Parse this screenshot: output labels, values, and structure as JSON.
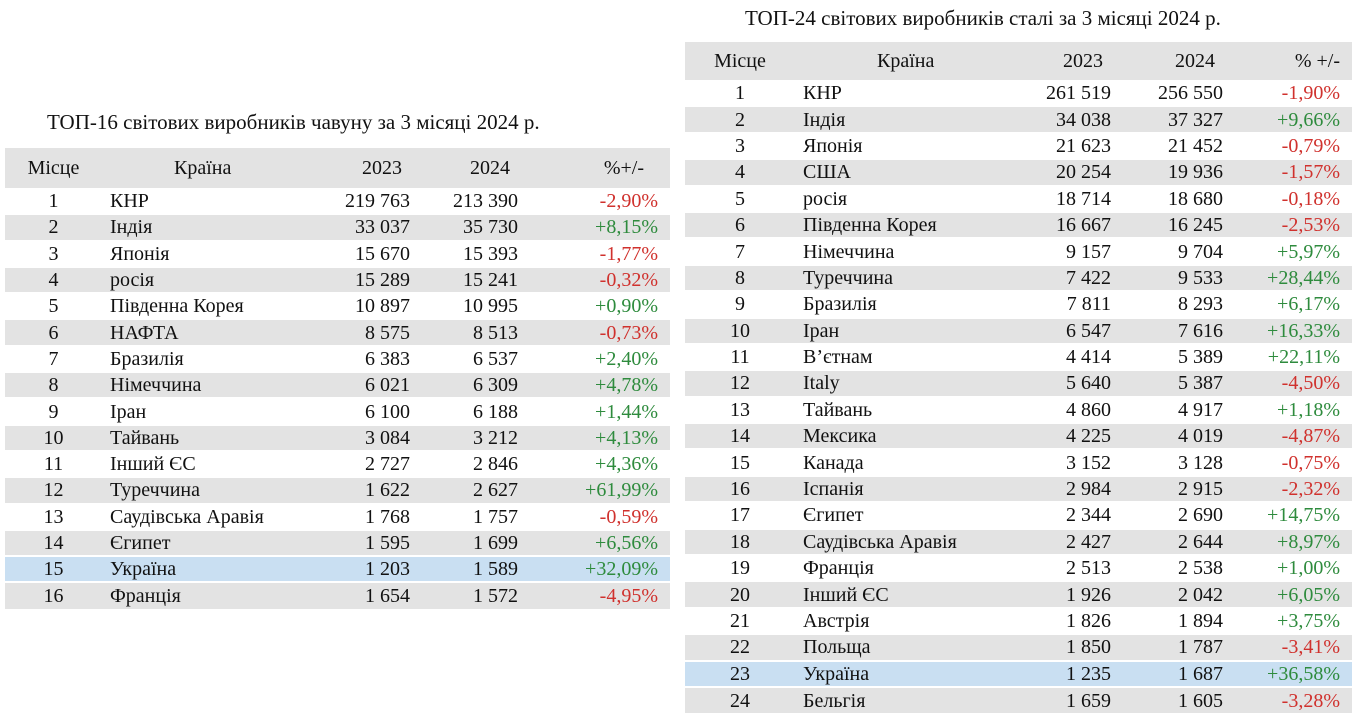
{
  "pig_iron": {
    "title": "ТОП-16 світових виробників чавуну за 3 місяці 2024 р.",
    "headers": {
      "place": "Місце",
      "country": "Країна",
      "y2023": "2023",
      "y2024": "2024",
      "change": "%+/-"
    },
    "rows": [
      {
        "place": "1",
        "country": "КНР",
        "v2023": "219 763",
        "v2024": "213 390",
        "change": "-2,90%",
        "sign": "neg"
      },
      {
        "place": "2",
        "country": "Індія",
        "v2023": "33 037",
        "v2024": "35 730",
        "change": "+8,15%",
        "sign": "pos"
      },
      {
        "place": "3",
        "country": "Японія",
        "v2023": "15 670",
        "v2024": "15 393",
        "change": "-1,77%",
        "sign": "neg"
      },
      {
        "place": "4",
        "country": "росія",
        "v2023": "15 289",
        "v2024": "15 241",
        "change": "-0,32%",
        "sign": "neg"
      },
      {
        "place": "5",
        "country": "Південна Корея",
        "v2023": "10 897",
        "v2024": "10 995",
        "change": "+0,90%",
        "sign": "pos"
      },
      {
        "place": "6",
        "country": "НАФТА",
        "v2023": "8 575",
        "v2024": "8 513",
        "change": "-0,73%",
        "sign": "neg"
      },
      {
        "place": "7",
        "country": "Бразилія",
        "v2023": "6 383",
        "v2024": "6 537",
        "change": "+2,40%",
        "sign": "pos"
      },
      {
        "place": "8",
        "country": "Німеччина",
        "v2023": "6 021",
        "v2024": "6 309",
        "change": "+4,78%",
        "sign": "pos"
      },
      {
        "place": "9",
        "country": "Іран",
        "v2023": "6 100",
        "v2024": "6 188",
        "change": "+1,44%",
        "sign": "pos"
      },
      {
        "place": "10",
        "country": "Тайвань",
        "v2023": "3 084",
        "v2024": "3 212",
        "change": "+4,13%",
        "sign": "pos"
      },
      {
        "place": "11",
        "country": "Інший ЄС",
        "v2023": "2 727",
        "v2024": "2 846",
        "change": "+4,36%",
        "sign": "pos"
      },
      {
        "place": "12",
        "country": "Туреччина",
        "v2023": "1 622",
        "v2024": "2 627",
        "change": "+61,99%",
        "sign": "pos"
      },
      {
        "place": "13",
        "country": "Саудівська Аравія",
        "v2023": "1 768",
        "v2024": "1 757",
        "change": "-0,59%",
        "sign": "neg"
      },
      {
        "place": "14",
        "country": "Єгипет",
        "v2023": "1 595",
        "v2024": "1 699",
        "change": "+6,56%",
        "sign": "pos"
      },
      {
        "place": "15",
        "country": "Україна",
        "v2023": "1 203",
        "v2024": "1 589",
        "change": "+32,09%",
        "sign": "pos"
      },
      {
        "place": "16",
        "country": "Франція",
        "v2023": "1 654",
        "v2024": "1 572",
        "change": "-4,95%",
        "sign": "neg"
      }
    ]
  },
  "steel": {
    "title": "ТОП-24 світових виробників сталі за 3 місяці 2024 р.",
    "headers": {
      "place": "Місце",
      "country": "Країна",
      "y2023": "2023",
      "y2024": "2024",
      "change": "% +/-"
    },
    "rows": [
      {
        "place": "1",
        "country": "КНР",
        "v2023": "261 519",
        "v2024": "256 550",
        "change": "-1,90%",
        "sign": "neg"
      },
      {
        "place": "2",
        "country": "Індія",
        "v2023": "34 038",
        "v2024": "37 327",
        "change": "+9,66%",
        "sign": "pos"
      },
      {
        "place": "3",
        "country": "Японія",
        "v2023": "21 623",
        "v2024": "21 452",
        "change": "-0,79%",
        "sign": "neg"
      },
      {
        "place": "4",
        "country": "США",
        "v2023": "20 254",
        "v2024": "19 936",
        "change": "-1,57%",
        "sign": "neg"
      },
      {
        "place": "5",
        "country": "росія",
        "v2023": "18 714",
        "v2024": "18 680",
        "change": "-0,18%",
        "sign": "neg"
      },
      {
        "place": "6",
        "country": "Південна Корея",
        "v2023": "16 667",
        "v2024": "16 245",
        "change": "-2,53%",
        "sign": "neg"
      },
      {
        "place": "7",
        "country": "Німеччина",
        "v2023": "9 157",
        "v2024": "9 704",
        "change": "+5,97%",
        "sign": "pos"
      },
      {
        "place": "8",
        "country": "Туреччина",
        "v2023": "7 422",
        "v2024": "9 533",
        "change": "+28,44%",
        "sign": "pos"
      },
      {
        "place": "9",
        "country": "Бразилія",
        "v2023": "7 811",
        "v2024": "8 293",
        "change": "+6,17%",
        "sign": "pos"
      },
      {
        "place": "10",
        "country": "Іран",
        "v2023": "6 547",
        "v2024": "7 616",
        "change": "+16,33%",
        "sign": "pos"
      },
      {
        "place": "11",
        "country": "В’єтнам",
        "v2023": "4 414",
        "v2024": "5 389",
        "change": "+22,11%",
        "sign": "pos"
      },
      {
        "place": "12",
        "country": "Italy",
        "v2023": "5 640",
        "v2024": "5 387",
        "change": "-4,50%",
        "sign": "neg"
      },
      {
        "place": "13",
        "country": "Тайвань",
        "v2023": "4 860",
        "v2024": "4 917",
        "change": "+1,18%",
        "sign": "pos"
      },
      {
        "place": "14",
        "country": "Мексика",
        "v2023": "4 225",
        "v2024": "4 019",
        "change": "-4,87%",
        "sign": "neg"
      },
      {
        "place": "15",
        "country": "Канада",
        "v2023": "3 152",
        "v2024": "3 128",
        "change": "-0,75%",
        "sign": "neg"
      },
      {
        "place": "16",
        "country": "Іспанія",
        "v2023": "2 984",
        "v2024": "2 915",
        "change": "-2,32%",
        "sign": "neg"
      },
      {
        "place": "17",
        "country": "Єгипет",
        "v2023": "2 344",
        "v2024": "2 690",
        "change": "+14,75%",
        "sign": "pos"
      },
      {
        "place": "18",
        "country": "Саудівська Аравія",
        "v2023": "2 427",
        "v2024": "2 644",
        "change": "+8,97%",
        "sign": "pos"
      },
      {
        "place": "19",
        "country": "Франція",
        "v2023": "2 513",
        "v2024": "2 538",
        "change": "+1,00%",
        "sign": "pos"
      },
      {
        "place": "20",
        "country": "Інший ЄС",
        "v2023": "1 926",
        "v2024": "2 042",
        "change": "+6,05%",
        "sign": "pos"
      },
      {
        "place": "21",
        "country": "Австрія",
        "v2023": "1 826",
        "v2024": "1 894",
        "change": "+3,75%",
        "sign": "pos"
      },
      {
        "place": "22",
        "country": "Польща",
        "v2023": "1 850",
        "v2024": "1 787",
        "change": "-3,41%",
        "sign": "neg"
      },
      {
        "place": "23",
        "country": "Україна",
        "v2023": "1 235",
        "v2024": "1 687",
        "change": "+36,58%",
        "sign": "pos"
      },
      {
        "place": "24",
        "country": "Бельгія",
        "v2023": "1 659",
        "v2024": "1 605",
        "change": "-3,28%",
        "sign": "neg"
      }
    ]
  },
  "colors": {
    "negative": "#d0312d",
    "positive": "#2e8b3d",
    "row_shade": "#e3e3e3",
    "highlight_row": "#c9dff2"
  }
}
